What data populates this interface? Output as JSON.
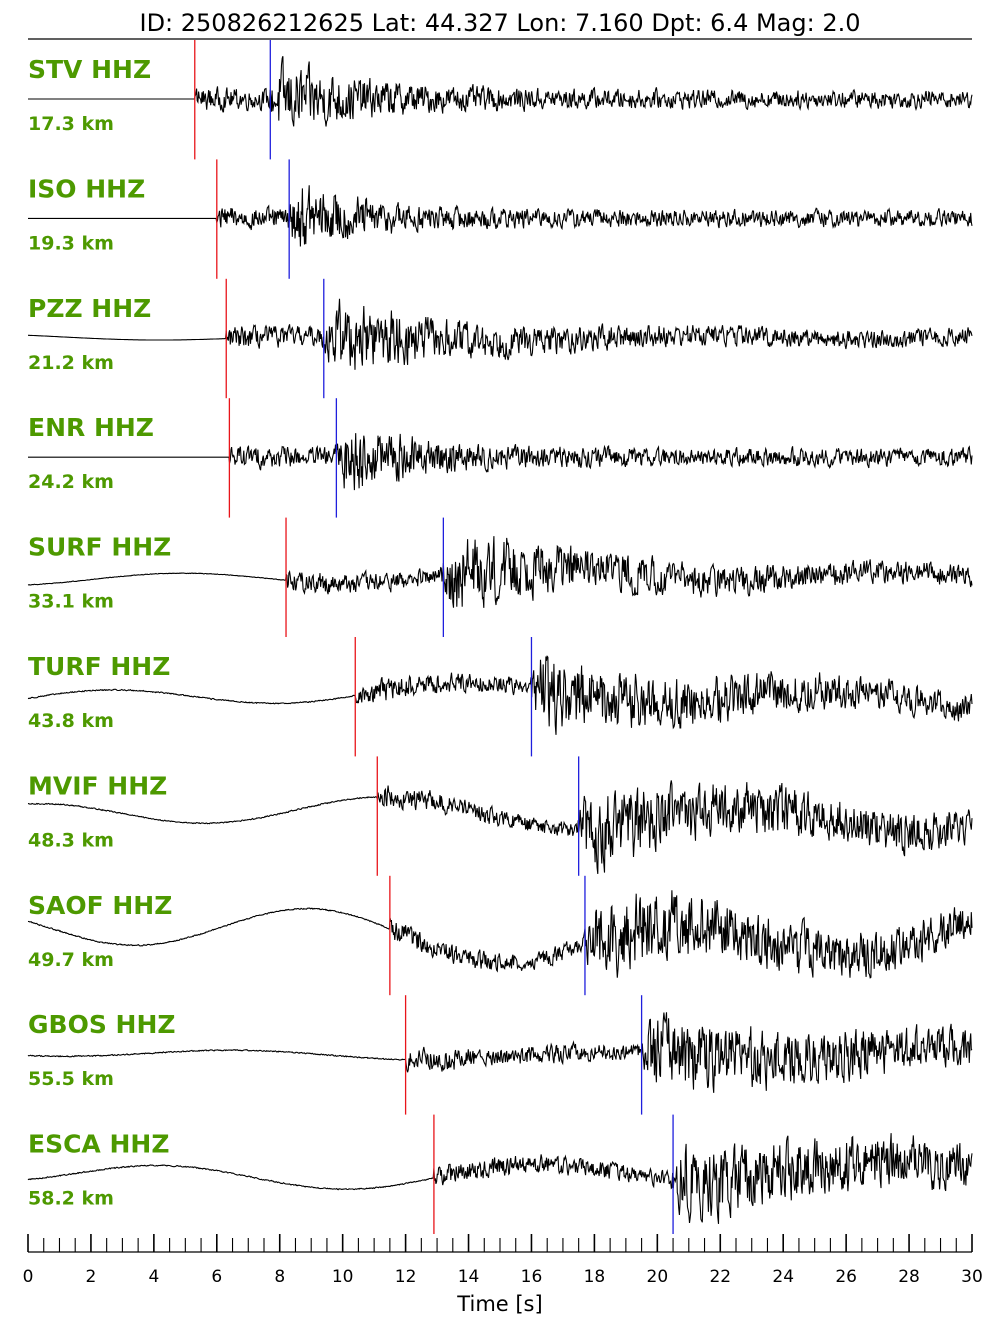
{
  "chart_data": {
    "type": "line",
    "title": "ID: 250826212625 Lat:  44.327 Lon:   7.160 Dpt:     6.4 Mag:   2.0",
    "xlabel": "Time [s]",
    "xlim": [
      0,
      30
    ],
    "x_ticks": [
      0,
      2,
      4,
      6,
      8,
      10,
      12,
      14,
      16,
      18,
      20,
      22,
      24,
      26,
      28,
      30
    ],
    "minor_tick_step": 0.5,
    "label_color": "#4d9900",
    "trace_color": "#000000",
    "p_pick_color": "#e8141a",
    "s_pick_color": "#1f1fdd",
    "grid": false,
    "series": [
      {
        "name": "STV HHZ",
        "distance": "17.3 km",
        "p_pick": 5.3,
        "s_pick": 7.7,
        "amp": 1.0,
        "noise": 0.0,
        "drift": 0.0,
        "decay": 0.25
      },
      {
        "name": "ISO HHZ",
        "distance": "19.3 km",
        "p_pick": 6.0,
        "s_pick": 8.3,
        "amp": 1.0,
        "noise": 0.0,
        "drift": 0.0,
        "decay": 0.4
      },
      {
        "name": "PZZ HHZ",
        "distance": "21.2 km",
        "p_pick": 6.3,
        "s_pick": 9.4,
        "amp": 1.0,
        "noise": 0.0,
        "drift": 0.1,
        "decay": 0.18
      },
      {
        "name": "ENR HHZ",
        "distance": "24.2 km",
        "p_pick": 6.4,
        "s_pick": 9.8,
        "amp": 1.0,
        "noise": 0.0,
        "drift": 0.0,
        "decay": 0.35
      },
      {
        "name": "SURF HHZ",
        "distance": "33.1 km",
        "p_pick": 8.2,
        "s_pick": 13.2,
        "amp": 1.0,
        "noise": 0.05,
        "drift": 0.25,
        "decay": 0.12
      },
      {
        "name": "TURF HHZ",
        "distance": "43.8 km",
        "p_pick": 10.4,
        "s_pick": 16.0,
        "amp": 1.0,
        "noise": 0.1,
        "drift": 0.35,
        "decay": 0.08
      },
      {
        "name": "MVIF HHZ",
        "distance": "48.3 km",
        "p_pick": 11.1,
        "s_pick": 17.5,
        "amp": 1.0,
        "noise": 0.1,
        "drift": 0.5,
        "decay": 0.06
      },
      {
        "name": "SAOF HHZ",
        "distance": "49.7 km",
        "p_pick": 11.5,
        "s_pick": 17.7,
        "amp": 1.0,
        "noise": 0.1,
        "drift": 0.8,
        "decay": 0.05
      },
      {
        "name": "GBOS HHZ",
        "distance": "55.5 km",
        "p_pick": 12.0,
        "s_pick": 19.5,
        "amp": 1.0,
        "noise": 0.1,
        "drift": 0.15,
        "decay": 0.06
      },
      {
        "name": "ESCA HHZ",
        "distance": "58.2 km",
        "p_pick": 12.9,
        "s_pick": 20.5,
        "amp": 1.0,
        "noise": 0.1,
        "drift": 0.4,
        "decay": 0.05
      }
    ]
  }
}
